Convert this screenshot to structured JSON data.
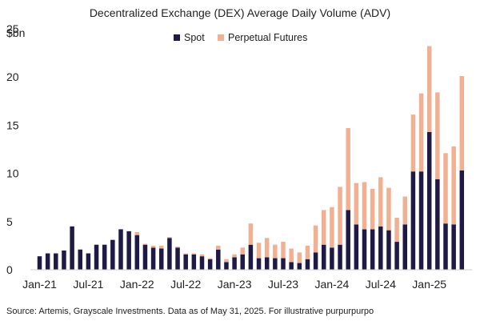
{
  "chart_data": {
    "type": "bar",
    "stacked": true,
    "title": "Decentralized Exchange (DEX) Average Daily Volume (ADV)",
    "y_unit_label": "$bn",
    "ylim": [
      0,
      25
    ],
    "y_ticks": [
      "0",
      "5",
      "10",
      "15",
      "20",
      "25"
    ],
    "grid": false,
    "legend_position": "top-center",
    "categories": [
      "Jan-21",
      "Feb-21",
      "Mar-21",
      "Apr-21",
      "May-21",
      "Jun-21",
      "Jul-21",
      "Aug-21",
      "Sep-21",
      "Oct-21",
      "Nov-21",
      "Dec-21",
      "Jan-22",
      "Feb-22",
      "Mar-22",
      "Apr-22",
      "May-22",
      "Jun-22",
      "Jul-22",
      "Aug-22",
      "Sep-22",
      "Oct-22",
      "Nov-22",
      "Dec-22",
      "Jan-23",
      "Feb-23",
      "Mar-23",
      "Apr-23",
      "May-23",
      "Jun-23",
      "Jul-23",
      "Aug-23",
      "Sep-23",
      "Oct-23",
      "Nov-23",
      "Dec-23",
      "Jan-24",
      "Feb-24",
      "Mar-24",
      "Apr-24",
      "May-24",
      "Jun-24",
      "Jul-24",
      "Aug-24",
      "Sep-24",
      "Oct-24",
      "Nov-24",
      "Dec-24",
      "Jan-25",
      "Feb-25",
      "Mar-25",
      "Apr-25",
      "May-25"
    ],
    "x_tick_labels": [
      {
        "index": 0,
        "label": "Jan-21"
      },
      {
        "index": 6,
        "label": "Jul-21"
      },
      {
        "index": 12,
        "label": "Jan-22"
      },
      {
        "index": 18,
        "label": "Jul-22"
      },
      {
        "index": 24,
        "label": "Jan-23"
      },
      {
        "index": 30,
        "label": "Jul-23"
      },
      {
        "index": 36,
        "label": "Jan-24"
      },
      {
        "index": 42,
        "label": "Jul-24"
      },
      {
        "index": 48,
        "label": "Jan-25"
      }
    ],
    "series": [
      {
        "name": "Spot",
        "color": "#1f1a45",
        "values": [
          1.4,
          1.7,
          1.7,
          2.0,
          4.5,
          2.1,
          1.7,
          2.6,
          2.6,
          3.1,
          4.2,
          4.0,
          3.6,
          2.6,
          2.3,
          2.2,
          3.3,
          2.3,
          1.6,
          1.6,
          1.4,
          1.1,
          2.1,
          0.8,
          1.3,
          1.6,
          2.6,
          1.2,
          1.3,
          1.2,
          1.2,
          0.8,
          0.7,
          1.1,
          1.8,
          2.6,
          2.3,
          2.6,
          6.2,
          4.7,
          4.2,
          4.2,
          4.5,
          4.1,
          2.9,
          4.7,
          10.2,
          10.2,
          14.3,
          9.4,
          4.8,
          4.7,
          10.3
        ]
      },
      {
        "name": "Perpetual Futures",
        "color": "#f2b092",
        "values": [
          0,
          0,
          0,
          0,
          0,
          0,
          0,
          0,
          0,
          0,
          0,
          0,
          0.3,
          0.1,
          0.2,
          0.3,
          0.1,
          0.1,
          0.1,
          0.1,
          0.2,
          0.1,
          0.4,
          0.3,
          0.3,
          0.7,
          2.2,
          1.6,
          2.0,
          1.4,
          1.7,
          1.4,
          1.1,
          1.4,
          2.8,
          3.6,
          4.2,
          6.0,
          8.5,
          4.3,
          4.9,
          4.2,
          5.1,
          4.4,
          2.5,
          2.9,
          5.9,
          8.1,
          8.9,
          9.0,
          7.3,
          8.1,
          9.8
        ]
      }
    ]
  },
  "source_note": "Source: Artemis, Grayscale Investments. Data as of May 31, 2025. For illustrative purpurpurpo"
}
